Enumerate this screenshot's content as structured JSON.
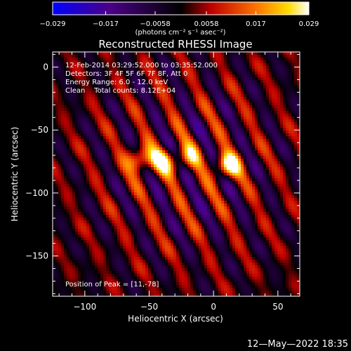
{
  "chart_data": {
    "type": "heatmap",
    "title": "Reconstructed RHESSI Image",
    "xlabel": "Heliocentric X (arcsec)",
    "ylabel": "Heliocentric Y (arcsec)",
    "xlim": [
      -125,
      67
    ],
    "ylim": [
      -182,
      12
    ],
    "x_ticks": [
      -100,
      -50,
      0,
      50
    ],
    "y_ticks": [
      0,
      -50,
      -100,
      -150
    ],
    "x_tick_labels": [
      "−100",
      "−50",
      "0",
      "50"
    ],
    "y_tick_labels": [
      "0",
      "−50",
      "−100",
      "−150"
    ],
    "colorbar": {
      "range": [
        -0.029,
        0.029
      ],
      "tick_values": [
        -0.029,
        -0.017,
        -0.0058,
        0.0058,
        0.017,
        0.029
      ],
      "tick_labels": [
        "−0.029",
        "−0.017",
        "−0.0058",
        "0.0058",
        "0.017",
        "0.029"
      ],
      "unit_label": "(photons cm⁻² s⁻¹ asec⁻²)",
      "colors": [
        "#0000ff",
        "#4b0088",
        "#000000",
        "#c00000",
        "#ff7800",
        "#ffdc00",
        "#ffffff"
      ]
    },
    "annotations": [
      "12-Feb-2014 03:29:52.000 to 03:35:52.000",
      "Detectors: 3F 4F 5F 6F 7F 8F, Att 0",
      "Energy Range: 6.0 - 12.0 keV",
      "Clean    Total counts: 8.12E+04"
    ],
    "peak_label": "Position of Peak = [11,-78]",
    "sources": [
      {
        "x": -57,
        "y": -74,
        "value": 0.024
      },
      {
        "x": -39,
        "y": -74,
        "value": 0.023
      },
      {
        "x": -20,
        "y": -72,
        "value": 0.017
      },
      {
        "x": 11,
        "y": -78,
        "value": 0.029
      }
    ]
  },
  "footer": {
    "timestamp": "12—May—2022 18:35"
  }
}
